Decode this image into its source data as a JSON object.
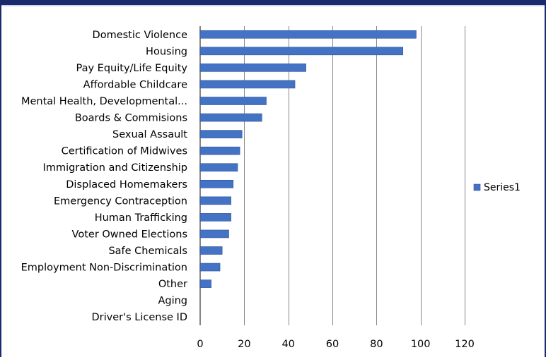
{
  "chart_data": {
    "type": "bar",
    "orientation": "horizontal",
    "categories": [
      "Domestic Violence",
      "Housing",
      "Pay Equity/Life Equity",
      "Affordable Childcare",
      "Mental Health, Developmental...",
      "Boards & Commisions",
      "Sexual Assault",
      "Certification of Midwives",
      "Immigration and Citizenship",
      "Displaced Homemakers",
      "Emergency Contraception",
      "Human Trafficking",
      "Voter Owned Elections",
      "Safe Chemicals",
      "Employment Non-Discrimination",
      "Other",
      "Aging",
      "Driver's License ID"
    ],
    "series": [
      {
        "name": "Series1",
        "values": [
          98,
          92,
          48,
          43,
          30,
          28,
          19,
          18,
          17,
          15,
          14,
          14,
          13,
          10,
          9,
          5,
          0,
          0
        ]
      }
    ],
    "xlim": [
      0,
      120
    ],
    "xticks": [
      "0",
      "20",
      "40",
      "60",
      "80",
      "100",
      "120"
    ],
    "grid": "vertical",
    "legend": "right",
    "colors": {
      "bar": "#4472c4",
      "bar_edge": "#2f5597",
      "grid": "#868686"
    }
  }
}
